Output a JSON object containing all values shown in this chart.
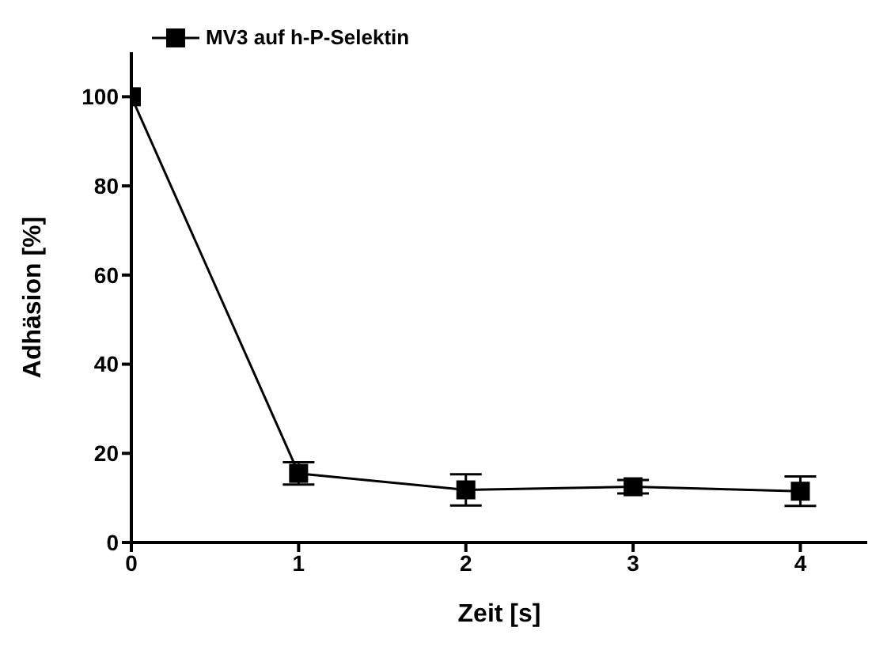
{
  "chart_data": {
    "type": "line",
    "xlabel": "Zeit [s]",
    "ylabel": "Adhäsion [%]",
    "x": [
      0,
      1,
      2,
      3,
      4
    ],
    "series": [
      {
        "name": "MV3 auf h-P-Selektin",
        "color": "#000000",
        "values": [
          100,
          15.5,
          11.8,
          12.5,
          11.5
        ],
        "errors": [
          null,
          2.5,
          3.5,
          1.5,
          3.3
        ]
      }
    ],
    "xlim": [
      0,
      4.4
    ],
    "xticks": [
      0,
      1,
      2,
      3,
      4
    ],
    "ylim": [
      0,
      110
    ],
    "yticks": [
      0,
      20,
      40,
      60,
      80,
      100
    ],
    "marker": "square",
    "line_style": "solid",
    "legend": "top left",
    "grid": false
  }
}
